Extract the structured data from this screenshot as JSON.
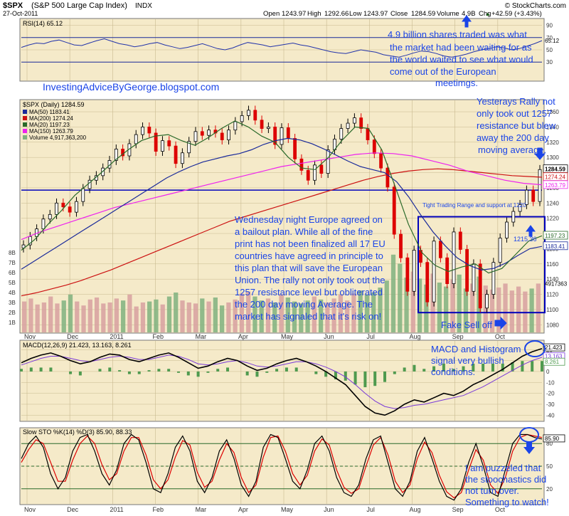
{
  "colors": {
    "panel_bg": "#f5eac9",
    "panel_border": "#777777",
    "price_up": "#000000",
    "price_down": "#dd0000",
    "ma50": "#1a2a9a",
    "ma200": "#cc1111",
    "ma20": "#2a6a2a",
    "ma150": "#ee22ee",
    "volume_up": "#d7a0a0",
    "volume_down": "#7fb27f",
    "rsi_line": "#2233aa",
    "macd_line": "#000000",
    "signal_line": "#7a3ad8",
    "histogram": "#4f9a4f",
    "sto_k": "#000000",
    "sto_d": "#dd0000",
    "annotation_text": "#1a44e8",
    "resistance_line": "#0000bb"
  },
  "header": {
    "symbol": "$SPX",
    "name": "(S&P 500 Large Cap Index)",
    "exchange": "INDX",
    "date": "27-Oct-2011",
    "brand": "© StockCharts.com",
    "quote": {
      "open_label": "Open",
      "open": "1243.97",
      "high_label": "High",
      "high": "1292.66",
      "low_label": "Low",
      "low": "1243.97",
      "close_label": "Close",
      "close": "1284.59",
      "volume_label": "Volume",
      "volume": "4.9B",
      "chg_label": "Chg",
      "chg": "+42.59 (+3.43%)"
    },
    "chg_arrow": "▲"
  },
  "chart_data": [
    {
      "type": "line",
      "panel": "RSI",
      "title": "RSI(14) 65.12",
      "y_ticks": [
        "90",
        "70",
        "50",
        "30"
      ],
      "ylim": [
        0,
        100
      ],
      "reference_lines": [
        70,
        30
      ],
      "series": [
        {
          "name": "RSI(14)",
          "values": [
            54,
            58,
            61,
            60,
            64,
            66,
            62,
            58,
            57,
            61,
            65,
            68,
            64,
            60,
            58,
            55,
            57,
            60,
            62,
            58,
            55,
            52,
            54,
            57,
            60,
            56,
            52,
            50,
            53,
            58,
            62,
            60,
            58,
            55,
            57,
            59,
            61,
            58,
            56,
            53,
            50,
            47,
            45,
            44,
            47,
            50,
            48,
            46,
            42,
            40,
            38,
            41,
            45,
            48,
            47,
            44,
            40,
            38,
            40,
            43,
            47,
            50,
            52,
            55,
            53,
            50,
            52,
            56,
            60,
            65
          ]
        }
      ],
      "value_label": "65.12"
    },
    {
      "type": "candlestick",
      "panel": "Price",
      "title": "$SPX (Daily) 1284.59",
      "y_ticks": [
        "1360",
        "1340",
        "1320",
        "1300",
        "1280",
        "1260",
        "1240",
        "1220",
        "1200",
        "1180",
        "1160",
        "1140",
        "1120",
        "1100",
        "1080"
      ],
      "ylim": [
        1070,
        1375
      ],
      "categories": [
        "Nov",
        "Dec",
        "2011",
        "Feb",
        "Mar",
        "Apr",
        "May",
        "Jun",
        "Jul",
        "Aug",
        "Sep",
        "Oct"
      ],
      "close": [
        1185,
        1196,
        1206,
        1219,
        1225,
        1240,
        1235,
        1228,
        1242,
        1259,
        1270,
        1276,
        1286,
        1296,
        1311,
        1302,
        1318,
        1330,
        1340,
        1332,
        1308,
        1322,
        1315,
        1292,
        1306,
        1321,
        1334,
        1329,
        1336,
        1332,
        1323,
        1336,
        1347,
        1355,
        1362,
        1349,
        1338,
        1340,
        1317,
        1339,
        1325,
        1298,
        1283,
        1270,
        1290,
        1279,
        1310,
        1324,
        1338,
        1345,
        1352,
        1338,
        1323,
        1305,
        1286,
        1261,
        1199,
        1168,
        1124,
        1178,
        1162,
        1110,
        1190,
        1168,
        1134,
        1202,
        1179,
        1124,
        1160,
        1102,
        1120,
        1162,
        1194,
        1215,
        1229,
        1238,
        1257,
        1242,
        1284
      ],
      "series": [
        {
          "name": "MA(50)",
          "label": "MA(50) 1183.41",
          "value": "1183.41"
        },
        {
          "name": "MA(200)",
          "label": "MA(200) 1274.24",
          "value": "1274.24"
        },
        {
          "name": "MA(20)",
          "label": "MA(20) 1197.23",
          "value": "1197.23"
        },
        {
          "name": "MA(150)",
          "label": "MA(150) 1263.79",
          "value": "1263.79"
        },
        {
          "name": "Volume",
          "label": "Volume 4,917,363,200",
          "value": "4917363"
        }
      ],
      "ma50": [
        1153,
        1163,
        1173,
        1183,
        1193,
        1203,
        1213,
        1223,
        1233,
        1243,
        1253,
        1263,
        1273,
        1281,
        1288,
        1294,
        1298,
        1302,
        1305,
        1310,
        1317,
        1322,
        1325,
        1323,
        1318,
        1311,
        1303,
        1295,
        1288,
        1284,
        1280,
        1268,
        1248,
        1224,
        1202,
        1184,
        1168,
        1158,
        1152,
        1154,
        1161,
        1171,
        1180,
        1183
      ],
      "ma200": [
        1118,
        1122,
        1127,
        1132,
        1138,
        1145,
        1152,
        1160,
        1168,
        1176,
        1184,
        1192,
        1200,
        1208,
        1216,
        1222,
        1228,
        1234,
        1240,
        1246,
        1252,
        1258,
        1264,
        1270,
        1275,
        1279,
        1282,
        1284,
        1285,
        1284,
        1282,
        1280,
        1278,
        1276,
        1275,
        1274
      ],
      "ma20": [
        1178,
        1192,
        1212,
        1230,
        1250,
        1265,
        1280,
        1296,
        1310,
        1322,
        1328,
        1330,
        1322,
        1316,
        1326,
        1338,
        1348,
        1340,
        1328,
        1320,
        1300,
        1286,
        1284,
        1300,
        1322,
        1340,
        1338,
        1310,
        1262,
        1212,
        1175,
        1158,
        1150,
        1156,
        1160,
        1148,
        1154,
        1172,
        1190,
        1197
      ],
      "ma150": [
        1192,
        1202,
        1210,
        1218,
        1226,
        1234,
        1240,
        1246,
        1252,
        1258,
        1264,
        1270,
        1276,
        1282,
        1288,
        1292,
        1296,
        1300,
        1304,
        1306,
        1305,
        1302,
        1296,
        1290,
        1282,
        1276,
        1270,
        1266,
        1264
      ],
      "last_value_labels": [
        "1284.59",
        "1274.24",
        "1263.79",
        "1197.23",
        "1183.41",
        "4917363"
      ],
      "resistance_level": 1257,
      "range_box": {
        "top": 1222,
        "bottom": 1096
      },
      "volume_axis_ticks": [
        "8B",
        "7B",
        "6B",
        "5B",
        "4B",
        "3B",
        "2B",
        "1B"
      ],
      "volume_values_billions": [
        3.1,
        3.4,
        2.8,
        3.0,
        3.6,
        2.9,
        3.2,
        3.8,
        3.1,
        2.7,
        3.3,
        3.5,
        2.9,
        3.0,
        3.4,
        3.2,
        3.8,
        2.6,
        3.0,
        3.1,
        3.3,
        2.8,
        3.6,
        4.0,
        3.2,
        3.0,
        2.9,
        3.4,
        3.1,
        3.5,
        2.7,
        3.0,
        3.3,
        3.9,
        4.1,
        3.6,
        3.2,
        3.4,
        3.0,
        3.8,
        3.5,
        3.1,
        2.9,
        3.2,
        3.6,
        3.3,
        3.0,
        3.4,
        3.8,
        3.2,
        3.9,
        4.2,
        3.8,
        4.0,
        4.5,
        5.2,
        7.8,
        6.9,
        5.5,
        6.1,
        5.4,
        4.8,
        5.9,
        5.0,
        4.6,
        5.3,
        5.8,
        4.4,
        4.9,
        5.6,
        4.7,
        4.3,
        4.5,
        4.9,
        4.2,
        4.6,
        4.1,
        4.4,
        4.9
      ]
    },
    {
      "type": "line",
      "panel": "MACD",
      "title": "MACD(12,26,9) 21.423, 13.163, 8.261",
      "legend_items": [
        "MACD(12,26,9)",
        "21.423",
        "13.163",
        "8.261"
      ],
      "y_ticks": [
        "20",
        "10",
        "0",
        "-10",
        "-20",
        "-30",
        "-40"
      ],
      "ylim": [
        -45,
        28
      ],
      "value_labels": [
        "21.423",
        "13.163",
        "8.261"
      ],
      "series": [
        {
          "name": "MACD",
          "values": [
            8,
            12,
            15,
            17,
            14,
            10,
            7,
            9,
            13,
            16,
            15,
            11,
            9,
            12,
            15,
            17,
            13,
            8,
            3,
            5,
            9,
            12,
            10,
            5,
            1,
            3,
            7,
            10,
            12,
            9,
            5,
            0,
            -6,
            -12,
            -22,
            -32,
            -38,
            -40,
            -36,
            -30,
            -26,
            -28,
            -24,
            -20,
            -22,
            -18,
            -12,
            -8,
            -3,
            2,
            8,
            14,
            18,
            21
          ]
        },
        {
          "name": "Signal",
          "values": [
            6,
            9,
            12,
            14,
            14,
            12,
            10,
            9,
            11,
            13,
            14,
            13,
            11,
            11,
            13,
            15,
            14,
            11,
            7,
            6,
            7,
            9,
            10,
            8,
            5,
            4,
            5,
            7,
            9,
            9,
            7,
            4,
            0,
            -5,
            -12,
            -20,
            -27,
            -32,
            -34,
            -33,
            -31,
            -30,
            -28,
            -26,
            -24,
            -22,
            -18,
            -14,
            -9,
            -4,
            1,
            6,
            10,
            13
          ]
        }
      ]
    },
    {
      "type": "line",
      "panel": "Stochastics",
      "title": "Slow STO %K(14) %D(3) 85.90, 88.33",
      "legend_items": [
        "Slow STO %K(14) %D(3)",
        "85.90",
        "88.33"
      ],
      "y_ticks": [
        "80",
        "50",
        "20"
      ],
      "ylim": [
        0,
        100
      ],
      "reference_lines": [
        80,
        50,
        20
      ],
      "value_labels": [
        "85.90"
      ],
      "series": [
        {
          "name": "%K",
          "values": [
            60,
            80,
            90,
            75,
            40,
            20,
            35,
            70,
            88,
            92,
            70,
            40,
            25,
            45,
            80,
            92,
            85,
            55,
            20,
            15,
            40,
            75,
            90,
            70,
            30,
            15,
            35,
            70,
            85,
            60,
            25,
            10,
            30,
            75,
            92,
            88,
            60,
            30,
            20,
            45,
            80,
            90,
            70,
            35,
            15,
            10,
            25,
            60,
            85,
            90,
            55,
            20,
            10,
            30,
            70,
            88,
            60,
            30,
            10,
            5,
            20,
            55,
            80,
            50,
            15,
            10,
            45,
            80,
            92,
            92,
            88,
            86
          ]
        },
        {
          "name": "%D",
          "values": [
            55,
            72,
            85,
            80,
            55,
            30,
            30,
            58,
            80,
            90,
            80,
            52,
            32,
            40,
            70,
            88,
            88,
            65,
            32,
            20,
            32,
            62,
            84,
            78,
            42,
            22,
            30,
            58,
            80,
            68,
            35,
            15,
            25,
            62,
            88,
            90,
            70,
            40,
            25,
            38,
            70,
            86,
            78,
            45,
            22,
            14,
            20,
            50,
            78,
            88,
            65,
            30,
            15,
            25,
            60,
            82,
            68,
            38,
            16,
            8,
            15,
            45,
            72,
            58,
            25,
            14,
            35,
            70,
            88,
            92,
            90,
            88
          ]
        }
      ]
    }
  ],
  "x_axis": {
    "labels": [
      "Nov",
      "Dec",
      "2011",
      "Feb",
      "Mar",
      "Apr",
      "May",
      "Jun",
      "Jul",
      "Aug",
      "Sep",
      "Oct"
    ]
  },
  "annotations": {
    "rsi_note": [
      "4.9 billion shares traded was what",
      "the market had been waiting for as",
      "the world waited to see what would",
      "come out of the European",
      "meetimgs."
    ],
    "blog": "InvestingAdviceByGeorge.blogspot.com",
    "rally_note": [
      "Yesterays Rally not",
      "only took out 1257",
      "resistance but blew",
      "away the 200 day",
      "moving average."
    ],
    "range_note": "Tight Trading Range and support at 1220",
    "level_label": "1215.36",
    "europe_note": [
      "Wednesday night Europe agreed on",
      "a bailout plan. While all of the fine",
      "print has not been finalized all 17 EU",
      "countries have agreed in principle to",
      "this plan that will save the European",
      "Union. The rally not only took out the",
      "1257 resistance level but obliterated",
      "the 200 day moving Average. The",
      "market has signaled that it's risk on!"
    ],
    "fake_selloff": "Fake Sell off",
    "macd_note": [
      "MACD and Histogram",
      "signal very bullish",
      "conditions."
    ],
    "sto_note": [
      "I am puzzeled that",
      "the stoochastics did",
      "not turn over.",
      "Something to watch!"
    ]
  }
}
